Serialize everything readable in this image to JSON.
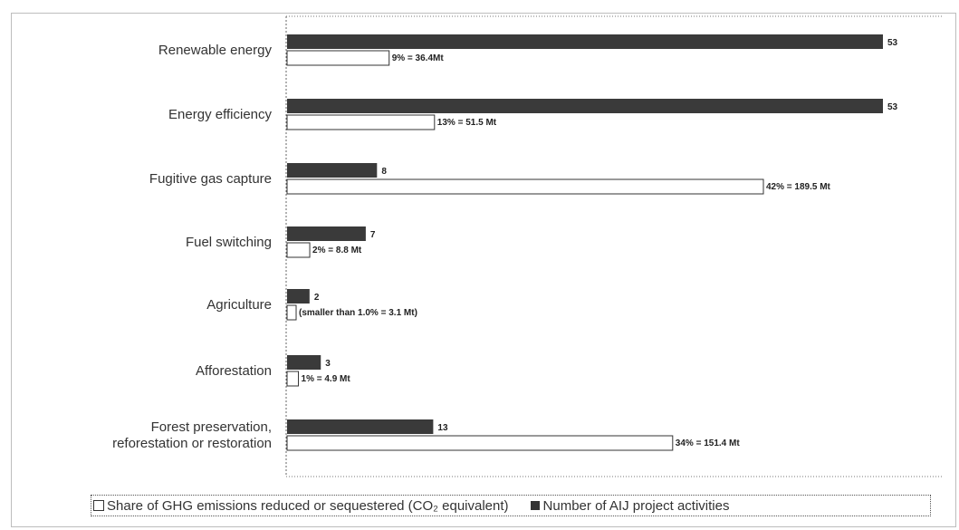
{
  "chart_data": {
    "type": "bar",
    "orientation": "horizontal",
    "categories": [
      "Renewable energy",
      "Energy efficiency",
      "Fugitive gas capture",
      "Fuel switching",
      "Agriculture",
      "Afforestation",
      "Forest preservation, reforestation or restoration"
    ],
    "category_lines": [
      [
        "Renewable energy"
      ],
      [
        "Energy efficiency"
      ],
      [
        "Fugitive gas capture"
      ],
      [
        "Fuel switching"
      ],
      [
        "Agriculture"
      ],
      [
        "Afforestation"
      ],
      [
        "Forest preservation,",
        "reforestation or restoration"
      ]
    ],
    "series": [
      {
        "name": "Number of AIJ project activities",
        "color": "#3a3a3a",
        "values": [
          53,
          53,
          8,
          7,
          2,
          3,
          13
        ],
        "labels": [
          "53",
          "53",
          "8",
          "7",
          "2",
          "3",
          "13"
        ]
      },
      {
        "name": "Share of GHG emissions reduced or sequestered (CO₂ equivalent)",
        "color": "#ffffff",
        "values": [
          9,
          13,
          42,
          2,
          0.8,
          1,
          34
        ],
        "labels": [
          "9% = 36.4Mt",
          "13% = 51.5 Mt",
          "42% = 189.5 Mt",
          "2% = 8.8 Mt",
          "(smaller than 1.0% = 3.1 Mt)",
          "1% = 4.9 Mt",
          "34% = 151.4 Mt"
        ]
      }
    ],
    "grid": false,
    "legend_position": "bottom"
  },
  "legend": {
    "share_label": "Share of GHG emissions reduced or sequestered (CO₂ equivalent)",
    "count_label": "Number of AIJ project activities"
  }
}
